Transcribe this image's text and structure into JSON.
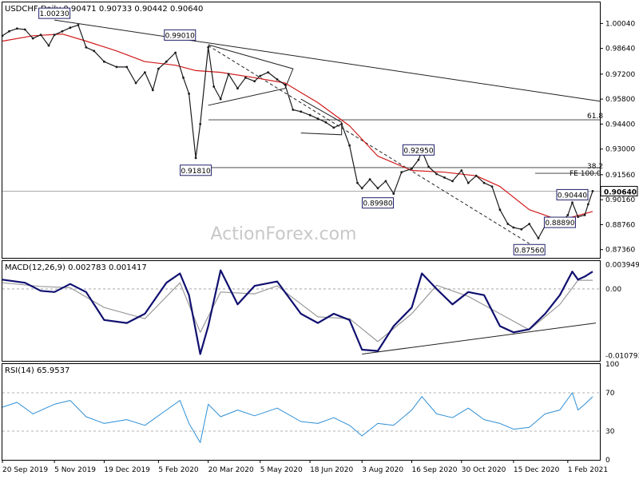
{
  "chart_data": {
    "type": "line",
    "instrument": "USDCHF",
    "timeframe": "Daily",
    "ohlc_header": {
      "open": "0.90471",
      "high": "0.90733",
      "low": "0.90442",
      "close": "0.90640"
    },
    "watermark": "ActionForex.com",
    "price_panel": {
      "y_ticks": [
        "1.00040",
        "0.98640",
        "0.97200",
        "0.95800",
        "0.94400",
        "0.93000",
        "0.91560",
        "0.90160",
        "0.88760",
        "0.87360"
      ],
      "ylim": [
        0.869,
        1.0122
      ],
      "last_price": "0.90640",
      "price_series": [
        [
          "2019-09-20",
          0.9935
        ],
        [
          "2019-09-26",
          0.996
        ],
        [
          "2019-10-03",
          0.9975
        ],
        [
          "2019-10-10",
          0.997
        ],
        [
          "2019-10-17",
          0.992
        ],
        [
          "2019-10-24",
          0.994
        ],
        [
          "2019-10-31",
          0.988
        ],
        [
          "2019-11-05",
          0.994
        ],
        [
          "2019-11-12",
          0.996
        ],
        [
          "2019-11-19",
          0.998
        ],
        [
          "2019-11-26",
          0.9995
        ],
        [
          "2019-12-03",
          0.987
        ],
        [
          "2019-12-10",
          0.985
        ],
        [
          "2019-12-19",
          0.979
        ],
        [
          "2019-12-30",
          0.976
        ],
        [
          "2020-01-08",
          0.976
        ],
        [
          "2020-01-16",
          0.967
        ],
        [
          "2020-01-24",
          0.973
        ],
        [
          "2020-01-31",
          0.963
        ],
        [
          "2020-02-05",
          0.975
        ],
        [
          "2020-02-12",
          0.979
        ],
        [
          "2020-02-20",
          0.984
        ],
        [
          "2020-02-27",
          0.97
        ],
        [
          "2020-03-03",
          0.961
        ],
        [
          "2020-03-09",
          0.925
        ],
        [
          "2020-03-13",
          0.944
        ],
        [
          "2020-03-20",
          0.987
        ],
        [
          "2020-03-25",
          0.965
        ],
        [
          "2020-03-31",
          0.958
        ],
        [
          "2020-04-07",
          0.972
        ],
        [
          "2020-04-15",
          0.964
        ],
        [
          "2020-04-22",
          0.97
        ],
        [
          "2020-04-30",
          0.968
        ],
        [
          "2020-05-05",
          0.971
        ],
        [
          "2020-05-12",
          0.973
        ],
        [
          "2020-05-20",
          0.969
        ],
        [
          "2020-05-27",
          0.966
        ],
        [
          "2020-06-03",
          0.952
        ],
        [
          "2020-06-10",
          0.951
        ],
        [
          "2020-06-18",
          0.949
        ],
        [
          "2020-06-25",
          0.947
        ],
        [
          "2020-07-02",
          0.945
        ],
        [
          "2020-07-09",
          0.942
        ],
        [
          "2020-07-16",
          0.944
        ],
        [
          "2020-07-23",
          0.932
        ],
        [
          "2020-07-30",
          0.911
        ],
        [
          "2020-08-03",
          0.908
        ],
        [
          "2020-08-10",
          0.913
        ],
        [
          "2020-08-17",
          0.908
        ],
        [
          "2020-08-24",
          0.912
        ],
        [
          "2020-08-31",
          0.905
        ],
        [
          "2020-09-07",
          0.917
        ],
        [
          "2020-09-16",
          0.919
        ],
        [
          "2020-09-22",
          0.924
        ],
        [
          "2020-09-25",
          0.929
        ],
        [
          "2020-10-01",
          0.92
        ],
        [
          "2020-10-08",
          0.916
        ],
        [
          "2020-10-15",
          0.914
        ],
        [
          "2020-10-22",
          0.912
        ],
        [
          "2020-10-30",
          0.918
        ],
        [
          "2020-11-05",
          0.911
        ],
        [
          "2020-11-12",
          0.915
        ],
        [
          "2020-11-19",
          0.911
        ],
        [
          "2020-11-26",
          0.909
        ],
        [
          "2020-12-03",
          0.896
        ],
        [
          "2020-12-10",
          0.888
        ],
        [
          "2020-12-15",
          0.886
        ],
        [
          "2020-12-22",
          0.885
        ],
        [
          "2020-12-29",
          0.888
        ],
        [
          "2021-01-06",
          0.88
        ],
        [
          "2021-01-12",
          0.887
        ],
        [
          "2021-01-19",
          0.889
        ],
        [
          "2021-01-25",
          0.888
        ],
        [
          "2021-02-01",
          0.893
        ],
        [
          "2021-02-05",
          0.9
        ],
        [
          "2021-02-10",
          0.892
        ],
        [
          "2021-02-16",
          0.893
        ],
        [
          "2021-02-19",
          0.899
        ],
        [
          "2021-02-23",
          0.9064
        ]
      ],
      "ma_series": [
        [
          "2019-09-20",
          0.9905
        ],
        [
          "2019-10-17",
          0.9935
        ],
        [
          "2019-11-12",
          0.9945
        ],
        [
          "2019-12-03",
          0.9905
        ],
        [
          "2019-12-30",
          0.985
        ],
        [
          "2020-01-24",
          0.979
        ],
        [
          "2020-02-20",
          0.977
        ],
        [
          "2020-03-09",
          0.974
        ],
        [
          "2020-03-31",
          0.973
        ],
        [
          "2020-04-30",
          0.97
        ],
        [
          "2020-05-27",
          0.967
        ],
        [
          "2020-06-25",
          0.956
        ],
        [
          "2020-07-23",
          0.943
        ],
        [
          "2020-08-17",
          0.926
        ],
        [
          "2020-09-16",
          0.918
        ],
        [
          "2020-10-15",
          0.917
        ],
        [
          "2020-11-12",
          0.915
        ],
        [
          "2020-12-03",
          0.909
        ],
        [
          "2020-12-29",
          0.896
        ],
        [
          "2021-01-25",
          0.89
        ],
        [
          "2021-02-23",
          0.895
        ]
      ],
      "level_labels": [
        {
          "text": "1.00230",
          "date": "2019-11-05",
          "price": 1.0023
        },
        {
          "text": "0.99010",
          "date": "2020-02-24",
          "price": 0.9901
        },
        {
          "text": "0.91810",
          "date": "2020-03-09",
          "price": 0.9181
        },
        {
          "text": "0.92950",
          "date": "2020-09-22",
          "price": 0.9295
        },
        {
          "text": "0.89980",
          "date": "2020-08-17",
          "price": 0.8998
        },
        {
          "text": "0.90440",
          "date": "2021-02-05",
          "price": 0.9044
        },
        {
          "text": "0.88890",
          "date": "2021-01-25",
          "price": 0.8889
        },
        {
          "text": "0.87560",
          "date": "2020-12-29",
          "price": 0.8756
        }
      ],
      "fib_labels": {
        "fib_618": "61.8",
        "fib_382": "38.2",
        "fe_100": "FE 100.0"
      }
    },
    "macd_panel": {
      "title": "MACD(12,26,9) 0.002783 0.001417",
      "y_ticks": [
        "0.003949",
        "0.00",
        "-0.010793"
      ],
      "ylim": [
        -0.0116,
        0.0045
      ],
      "macd": [
        [
          "2019-09-20",
          0.0015
        ],
        [
          "2019-10-10",
          0.001
        ],
        [
          "2019-10-24",
          -0.0003
        ],
        [
          "2019-11-05",
          -0.0005
        ],
        [
          "2019-11-19",
          0.0008
        ],
        [
          "2019-12-03",
          -0.0005
        ],
        [
          "2019-12-19",
          -0.005
        ],
        [
          "2020-01-08",
          -0.0055
        ],
        [
          "2020-01-24",
          -0.004
        ],
        [
          "2020-02-12",
          0.001
        ],
        [
          "2020-02-24",
          0.0025
        ],
        [
          "2020-03-03",
          -0.001
        ],
        [
          "2020-03-13",
          -0.0105
        ],
        [
          "2020-03-20",
          -0.006
        ],
        [
          "2020-03-31",
          0.003
        ],
        [
          "2020-04-15",
          -0.0025
        ],
        [
          "2020-04-30",
          0.0005
        ],
        [
          "2020-05-20",
          0.0012
        ],
        [
          "2020-06-10",
          -0.004
        ],
        [
          "2020-06-25",
          -0.0055
        ],
        [
          "2020-07-09",
          -0.004
        ],
        [
          "2020-07-23",
          -0.005
        ],
        [
          "2020-08-03",
          -0.0098
        ],
        [
          "2020-08-17",
          -0.01
        ],
        [
          "2020-08-31",
          -0.006
        ],
        [
          "2020-09-16",
          -0.003
        ],
        [
          "2020-09-25",
          0.0025
        ],
        [
          "2020-10-08",
          0.0
        ],
        [
          "2020-10-22",
          -0.0025
        ],
        [
          "2020-11-05",
          -0.0005
        ],
        [
          "2020-11-19",
          -0.001
        ],
        [
          "2020-12-03",
          -0.006
        ],
        [
          "2020-12-15",
          -0.007
        ],
        [
          "2020-12-29",
          -0.0065
        ],
        [
          "2021-01-12",
          -0.004
        ],
        [
          "2021-01-25",
          -0.001
        ],
        [
          "2021-02-05",
          0.0028
        ],
        [
          "2021-02-10",
          0.0015
        ],
        [
          "2021-02-16",
          0.002
        ],
        [
          "2021-02-23",
          0.0028
        ]
      ],
      "signal": [
        [
          "2019-09-20",
          0.001
        ],
        [
          "2019-10-24",
          0.0004
        ],
        [
          "2019-11-19",
          0.0002
        ],
        [
          "2019-12-19",
          -0.003
        ],
        [
          "2020-01-24",
          -0.0048
        ],
        [
          "2020-02-24",
          0.001
        ],
        [
          "2020-03-13",
          -0.007
        ],
        [
          "2020-03-31",
          -0.0005
        ],
        [
          "2020-04-30",
          -0.0008
        ],
        [
          "2020-05-20",
          0.0005
        ],
        [
          "2020-06-25",
          -0.0045
        ],
        [
          "2020-07-23",
          -0.0048
        ],
        [
          "2020-08-17",
          -0.0085
        ],
        [
          "2020-09-16",
          -0.004
        ],
        [
          "2020-10-08",
          0.0006
        ],
        [
          "2020-11-05",
          -0.0012
        ],
        [
          "2020-12-03",
          -0.004
        ],
        [
          "2020-12-29",
          -0.0066
        ],
        [
          "2021-01-25",
          -0.0025
        ],
        [
          "2021-02-10",
          0.0014
        ],
        [
          "2021-02-23",
          0.0014
        ]
      ]
    },
    "rsi_panel": {
      "title": "RSI(14) 65.9537",
      "y_ticks": [
        "100",
        "70",
        "30",
        "0"
      ],
      "ylim": [
        0,
        100
      ],
      "rsi": [
        [
          "2019-09-20",
          55
        ],
        [
          "2019-10-03",
          60
        ],
        [
          "2019-10-17",
          48
        ],
        [
          "2019-11-05",
          58
        ],
        [
          "2019-11-19",
          62
        ],
        [
          "2019-12-03",
          45
        ],
        [
          "2019-12-19",
          38
        ],
        [
          "2020-01-08",
          42
        ],
        [
          "2020-01-24",
          36
        ],
        [
          "2020-02-12",
          52
        ],
        [
          "2020-02-24",
          62
        ],
        [
          "2020-03-03",
          38
        ],
        [
          "2020-03-13",
          18
        ],
        [
          "2020-03-20",
          58
        ],
        [
          "2020-03-31",
          45
        ],
        [
          "2020-04-15",
          52
        ],
        [
          "2020-04-30",
          46
        ],
        [
          "2020-05-20",
          54
        ],
        [
          "2020-06-10",
          40
        ],
        [
          "2020-06-25",
          38
        ],
        [
          "2020-07-09",
          44
        ],
        [
          "2020-07-23",
          36
        ],
        [
          "2020-08-03",
          25
        ],
        [
          "2020-08-17",
          38
        ],
        [
          "2020-08-31",
          36
        ],
        [
          "2020-09-16",
          52
        ],
        [
          "2020-09-25",
          66
        ],
        [
          "2020-10-08",
          48
        ],
        [
          "2020-10-22",
          44
        ],
        [
          "2020-11-05",
          54
        ],
        [
          "2020-11-19",
          42
        ],
        [
          "2020-12-03",
          38
        ],
        [
          "2020-12-15",
          32
        ],
        [
          "2020-12-29",
          34
        ],
        [
          "2021-01-12",
          48
        ],
        [
          "2021-01-25",
          52
        ],
        [
          "2021-02-05",
          70
        ],
        [
          "2021-02-10",
          52
        ],
        [
          "2021-02-16",
          58
        ],
        [
          "2021-02-23",
          65.95
        ]
      ]
    },
    "x_ticks": [
      {
        "label": "20 Sep 2019",
        "date": "2019-09-20"
      },
      {
        "label": "5 Nov 2019",
        "date": "2019-11-05"
      },
      {
        "label": "19 Dec 2019",
        "date": "2019-12-19"
      },
      {
        "label": "5 Feb 2020",
        "date": "2020-02-05"
      },
      {
        "label": "20 Mar 2020",
        "date": "2020-03-20"
      },
      {
        "label": "5 May 2020",
        "date": "2020-05-05"
      },
      {
        "label": "18 Jun 2020",
        "date": "2020-06-18"
      },
      {
        "label": "3 Aug 2020",
        "date": "2020-08-03"
      },
      {
        "label": "16 Sep 2020",
        "date": "2020-09-16"
      },
      {
        "label": "30 Oct 2020",
        "date": "2020-10-30"
      },
      {
        "label": "15 Dec 2020",
        "date": "2020-12-15"
      },
      {
        "label": "1 Feb 2021",
        "date": "2021-02-01"
      }
    ],
    "colors": {
      "price": "#1b1b1b",
      "ma": "#d11a1a",
      "macd": "#101070",
      "signal": "#9a9a9a",
      "rsi": "#2e8fd6",
      "label_border": "#1f1f6a",
      "watermark": "#c8c8c8",
      "frame": "#000000"
    }
  }
}
